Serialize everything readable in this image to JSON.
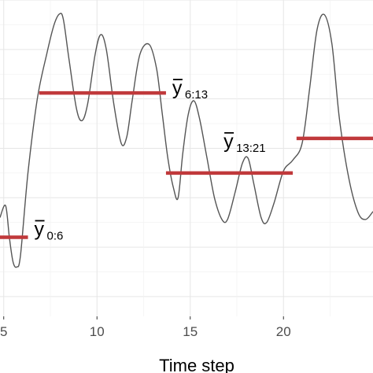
{
  "chart_data": {
    "type": "line",
    "title": "",
    "xlabel": "Time step",
    "ylabel": "",
    "xlim": [
      4.8,
      24.8
    ],
    "ylim": [
      -0.2,
      3.0
    ],
    "x_ticks": [
      5,
      10,
      15,
      20
    ],
    "x_tick_labels": [
      "5",
      "10",
      "15",
      "20"
    ],
    "grid": true,
    "series": [
      {
        "type": "line",
        "color": "#555555",
        "points": [
          [
            4.8,
            0.8
          ],
          [
            5.1,
            0.92
          ],
          [
            5.3,
            0.6
          ],
          [
            5.5,
            0.35
          ],
          [
            5.7,
            0.3
          ],
          [
            5.9,
            0.42
          ],
          [
            6.3,
            1.25
          ],
          [
            6.8,
            2.0
          ],
          [
            7.3,
            2.45
          ],
          [
            7.7,
            2.75
          ],
          [
            8.0,
            2.86
          ],
          [
            8.2,
            2.8
          ],
          [
            8.5,
            2.4
          ],
          [
            8.9,
            1.9
          ],
          [
            9.2,
            1.78
          ],
          [
            9.5,
            1.95
          ],
          [
            9.9,
            2.45
          ],
          [
            10.2,
            2.65
          ],
          [
            10.5,
            2.5
          ],
          [
            10.9,
            1.95
          ],
          [
            11.3,
            1.55
          ],
          [
            11.6,
            1.62
          ],
          [
            11.9,
            2.0
          ],
          [
            12.3,
            2.45
          ],
          [
            12.8,
            2.55
          ],
          [
            13.2,
            2.3
          ],
          [
            13.5,
            1.85
          ],
          [
            13.8,
            1.4
          ],
          [
            14.1,
            1.1
          ],
          [
            14.35,
            1.0
          ],
          [
            14.6,
            1.45
          ],
          [
            14.9,
            1.85
          ],
          [
            15.2,
            1.98
          ],
          [
            15.5,
            1.8
          ],
          [
            15.9,
            1.4
          ],
          [
            16.3,
            1.0
          ],
          [
            16.7,
            0.78
          ],
          [
            17.0,
            0.78
          ],
          [
            17.4,
            1.05
          ],
          [
            17.8,
            1.35
          ],
          [
            18.1,
            1.4
          ],
          [
            18.4,
            1.15
          ],
          [
            18.8,
            0.8
          ],
          [
            19.1,
            0.75
          ],
          [
            19.5,
            0.95
          ],
          [
            20.0,
            1.27
          ],
          [
            20.5,
            1.38
          ],
          [
            21.0,
            1.55
          ],
          [
            21.4,
            2.1
          ],
          [
            21.8,
            2.7
          ],
          [
            22.2,
            2.85
          ],
          [
            22.6,
            2.55
          ],
          [
            23.0,
            1.8
          ],
          [
            23.5,
            1.2
          ],
          [
            24.0,
            0.85
          ],
          [
            24.4,
            0.78
          ],
          [
            24.8,
            0.86
          ]
        ]
      }
    ],
    "segments": [
      {
        "x0": 4.8,
        "x1": 6.3,
        "y": 0.6,
        "color": "#c0393b",
        "label_main": "y",
        "label_sub": "0:6"
      },
      {
        "x0": 6.9,
        "x1": 13.7,
        "y": 2.06,
        "color": "#c0393b",
        "label_main": "y",
        "label_sub": "6:13"
      },
      {
        "x0": 13.7,
        "x1": 20.5,
        "y": 1.25,
        "color": "#c0393b",
        "label_main": "y",
        "label_sub": "13:21"
      },
      {
        "x0": 20.7,
        "x1": 24.8,
        "y": 1.6,
        "color": "#c0393b",
        "label_main": "y",
        "label_sub": ""
      }
    ]
  }
}
